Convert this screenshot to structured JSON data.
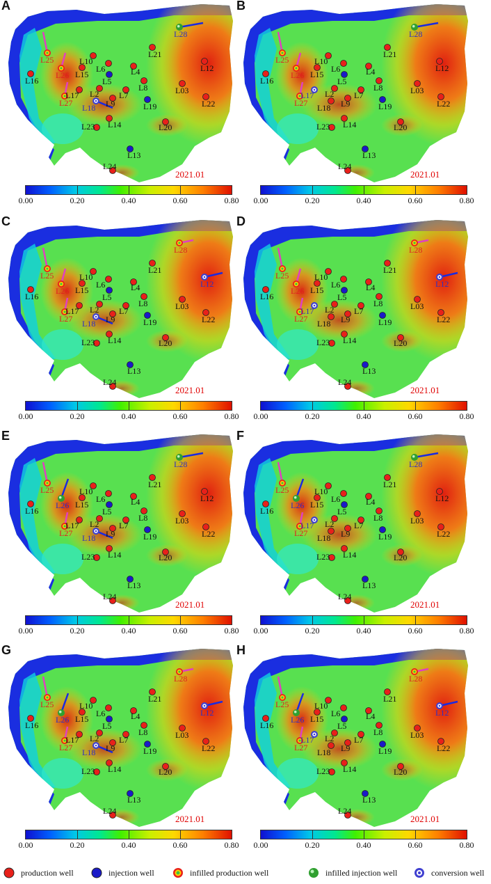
{
  "panels": [
    {
      "letter": "A",
      "date": "2021.01",
      "injection_segments": [
        "L28",
        "L18"
      ],
      "infilled_injection": [
        "L28"
      ],
      "conversion": [
        "L18"
      ],
      "infilled_production": [
        "L25",
        "L26",
        "L27"
      ],
      "injection": [
        "L5",
        "L19",
        "L13",
        "L28"
      ],
      "labels": [
        "L25",
        "L26",
        "L27",
        "L18",
        "L28",
        "L10",
        "L6",
        "L4",
        "L21",
        "L12",
        "L16",
        "L15",
        "L5",
        "L8",
        "L03",
        "L22",
        "L17",
        "L2",
        "L7",
        "L9",
        "L19",
        "L14",
        "L23",
        "L20",
        "L13",
        "L24"
      ]
    },
    {
      "letter": "B",
      "date": "2021.01",
      "injection_segments": [
        "L28"
      ],
      "infilled_injection": [
        "L28"
      ],
      "conversion": [
        "L17"
      ],
      "infilled_production": [
        "L25",
        "L26",
        "L27"
      ],
      "injection": [
        "L5",
        "L19",
        "L13",
        "L28"
      ],
      "labels": [
        "L25",
        "L26",
        "L27",
        "L17",
        "L28",
        "L10",
        "L6",
        "L4",
        "L21",
        "L12",
        "L16",
        "L15",
        "L5",
        "L8",
        "L03",
        "L22",
        "L2",
        "L7",
        "L9",
        "L19",
        "L18",
        "L14",
        "L23",
        "L20",
        "L13",
        "L24"
      ]
    },
    {
      "letter": "C",
      "date": "2021.01",
      "injection_segments": [
        "L12",
        "L18"
      ],
      "infilled_injection": [],
      "conversion": [
        "L12",
        "L18"
      ],
      "infilled_production": [
        "L25",
        "L26",
        "L27",
        "L28"
      ],
      "injection": [
        "L5",
        "L19",
        "L13"
      ],
      "labels": [
        "L25",
        "L26",
        "L27",
        "L18",
        "L28",
        "L10",
        "L6",
        "L4",
        "L21",
        "L12",
        "L16",
        "L15",
        "L5",
        "L8",
        "L03",
        "L22",
        "L17",
        "L2",
        "L7",
        "L9",
        "L19",
        "L14",
        "L23",
        "L20",
        "L13",
        "L24"
      ]
    },
    {
      "letter": "D",
      "date": "2021.01",
      "injection_segments": [
        "L12"
      ],
      "infilled_injection": [],
      "conversion": [
        "L12",
        "L17"
      ],
      "infilled_production": [
        "L25",
        "L26",
        "L27",
        "L28"
      ],
      "injection": [
        "L5",
        "L19",
        "L13"
      ],
      "labels": [
        "L25",
        "L26",
        "L27",
        "L17",
        "L28",
        "L10",
        "L6",
        "L4",
        "L21",
        "L12",
        "L16",
        "L15",
        "L5",
        "L8",
        "L03",
        "L22",
        "L2",
        "L7",
        "L9",
        "L19",
        "L18",
        "L14",
        "L23",
        "L20",
        "L13",
        "L24"
      ]
    },
    {
      "letter": "E",
      "date": "2021.01",
      "injection_segments": [
        "L28",
        "L26",
        "L18"
      ],
      "infilled_injection": [
        "L28",
        "L26"
      ],
      "conversion": [
        "L18"
      ],
      "infilled_production": [
        "L25",
        "L27"
      ],
      "injection": [
        "L5",
        "L19",
        "L13",
        "L28",
        "L26"
      ],
      "labels": [
        "L25",
        "L26",
        "L27",
        "L18",
        "L28",
        "L10",
        "L6",
        "L4",
        "L21",
        "L12",
        "L16",
        "L15",
        "L5",
        "L8",
        "L03",
        "L22",
        "L17",
        "L2",
        "L7",
        "L9",
        "L19",
        "L14",
        "L23",
        "L20",
        "L13",
        "L24"
      ]
    },
    {
      "letter": "F",
      "date": "2021.01",
      "injection_segments": [
        "L28",
        "L26"
      ],
      "infilled_injection": [
        "L28",
        "L26"
      ],
      "conversion": [
        "L17"
      ],
      "infilled_production": [
        "L25",
        "L27"
      ],
      "injection": [
        "L5",
        "L19",
        "L13",
        "L28",
        "L26"
      ],
      "labels": [
        "L25",
        "L26",
        "L27",
        "L17",
        "L28",
        "L10",
        "L6",
        "L4",
        "L21",
        "L12",
        "L16",
        "L15",
        "L5",
        "L8",
        "L03",
        "L22",
        "L2",
        "L7",
        "L9",
        "L19",
        "L18",
        "L14",
        "L23",
        "L20",
        "L13",
        "L24"
      ]
    },
    {
      "letter": "G",
      "date": "2021.01",
      "injection_segments": [
        "L12",
        "L26",
        "L18"
      ],
      "infilled_injection": [
        "L26"
      ],
      "conversion": [
        "L12",
        "L18"
      ],
      "infilled_production": [
        "L25",
        "L27",
        "L28"
      ],
      "injection": [
        "L5",
        "L19",
        "L13",
        "L26"
      ],
      "labels": [
        "L25",
        "L26",
        "L27",
        "L18",
        "L28",
        "L10",
        "L6",
        "L4",
        "L21",
        "L12",
        "L16",
        "L15",
        "L5",
        "L8",
        "L03",
        "L22",
        "L17",
        "L2",
        "L7",
        "L9",
        "L19",
        "L14",
        "L23",
        "L20",
        "L13",
        "L24"
      ]
    },
    {
      "letter": "H",
      "date": "2021.01",
      "injection_segments": [
        "L12",
        "L26"
      ],
      "infilled_injection": [
        "L26"
      ],
      "conversion": [
        "L12",
        "L17"
      ],
      "infilled_production": [
        "L25",
        "L27",
        "L28"
      ],
      "injection": [
        "L5",
        "L19",
        "L13",
        "L26"
      ],
      "labels": [
        "L25",
        "L26",
        "L27",
        "L17",
        "L28",
        "L10",
        "L6",
        "L4",
        "L21",
        "L12",
        "L16",
        "L15",
        "L5",
        "L8",
        "L03",
        "L22",
        "L2",
        "L7",
        "L9",
        "L19",
        "L18",
        "L14",
        "L23",
        "L20",
        "L13",
        "L24"
      ]
    }
  ],
  "colorbar": {
    "min": 0.0,
    "max": 0.8,
    "ticks": [
      "0.00",
      "0.20",
      "0.40",
      "0.60",
      "0.80"
    ]
  },
  "legend": {
    "production": "production well",
    "injection": "injection well",
    "infilled_production": "infilled production well",
    "infilled_injection": "infilled injection well",
    "conversion": "conversion well"
  },
  "colors": {
    "production": "#e8201a",
    "injection": "#1a1ac8",
    "infill_line": "#e040c0",
    "injection_line": "#1a2ae0",
    "label": "#111111",
    "infill_label": "#e02020",
    "conversion_label": "#3030c0",
    "date": "#e00000"
  }
}
